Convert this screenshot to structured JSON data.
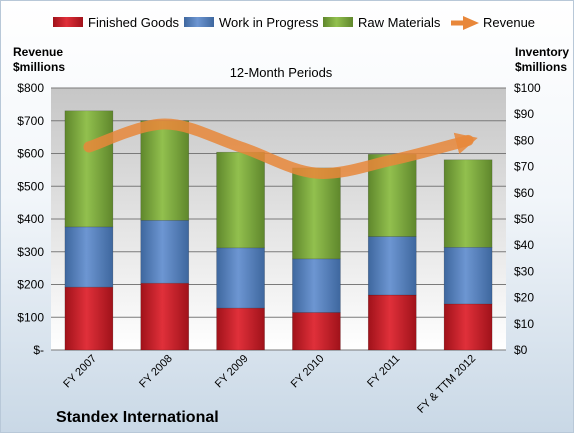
{
  "chart_data": {
    "type": "bar",
    "stacked": true,
    "title": "12-Month Periods",
    "company": "Standex International",
    "categories": [
      "FY 2007",
      "FY 2008",
      "FY 2009",
      "FY 2010",
      "FY 2011",
      "FY & TTM 2012"
    ],
    "left_axis": {
      "label_line1": "Revenue",
      "label_line2": "$millions",
      "range": [
        0,
        800
      ],
      "step": 100,
      "tick_labels": [
        "$-",
        "$100",
        "$200",
        "$300",
        "$400",
        "$500",
        "$600",
        "$700",
        "$800"
      ]
    },
    "right_axis": {
      "label_line1": "Inventory",
      "label_line2": "$millions",
      "range": [
        0,
        100
      ],
      "step": 10,
      "tick_labels": [
        "$0",
        "$10",
        "$20",
        "$30",
        "$40",
        "$50",
        "$60",
        "$70",
        "$80",
        "$90",
        "$100"
      ]
    },
    "series": [
      {
        "name": "Finished Goods",
        "axis": "right",
        "color": "#c0171f",
        "values": [
          24,
          25.5,
          16,
          14.3,
          21,
          17.6
        ]
      },
      {
        "name": "Work in Progress",
        "axis": "right",
        "color": "#4f7fc0",
        "values": [
          23,
          24,
          23,
          20.5,
          22.3,
          21.6
        ]
      },
      {
        "name": "Raw Materials",
        "axis": "right",
        "color": "#78a63a",
        "values": [
          44.3,
          38,
          36.5,
          34.7,
          31.4,
          33.4
        ]
      },
      {
        "name": "Revenue",
        "axis": "left",
        "type": "line",
        "color": "#e8873a",
        "values": [
          620,
          690,
          620,
          540,
          580,
          640
        ]
      }
    ],
    "grid": true,
    "legend_position": "top"
  }
}
